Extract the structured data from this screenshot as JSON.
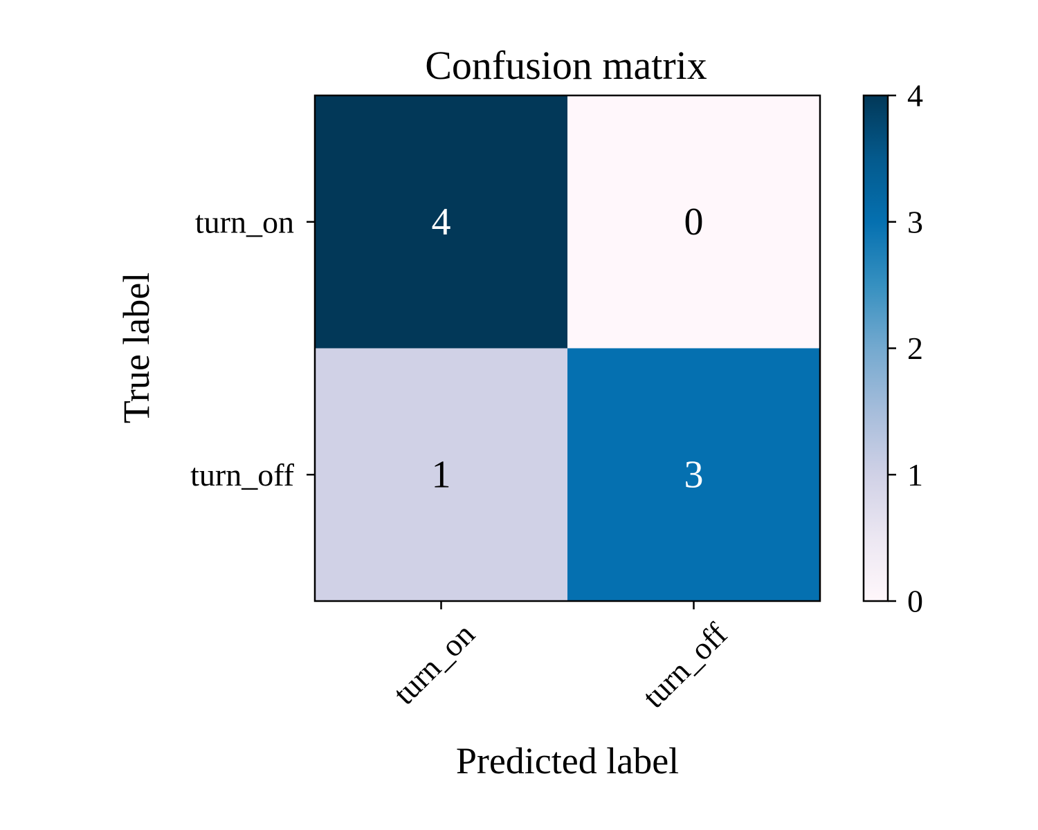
{
  "chart_data": {
    "type": "heatmap",
    "title": "Confusion matrix",
    "xlabel": "Predicted label",
    "ylabel": "True label",
    "x_categories": [
      "turn_on",
      "turn_off"
    ],
    "y_categories": [
      "turn_on",
      "turn_off"
    ],
    "values": [
      [
        4,
        0
      ],
      [
        1,
        3
      ]
    ],
    "colorbar": {
      "min": 0,
      "max": 4,
      "ticks": [
        "0",
        "1",
        "2",
        "3",
        "4"
      ],
      "colormap": "PuBu",
      "stops": [
        "#fff7fb",
        "#ece7f2",
        "#d0d1e6",
        "#a6bddb",
        "#74a9cf",
        "#3690c0",
        "#0570b0",
        "#045a8d",
        "#023858"
      ]
    },
    "x_tick_rotation": -45,
    "grid": false
  }
}
